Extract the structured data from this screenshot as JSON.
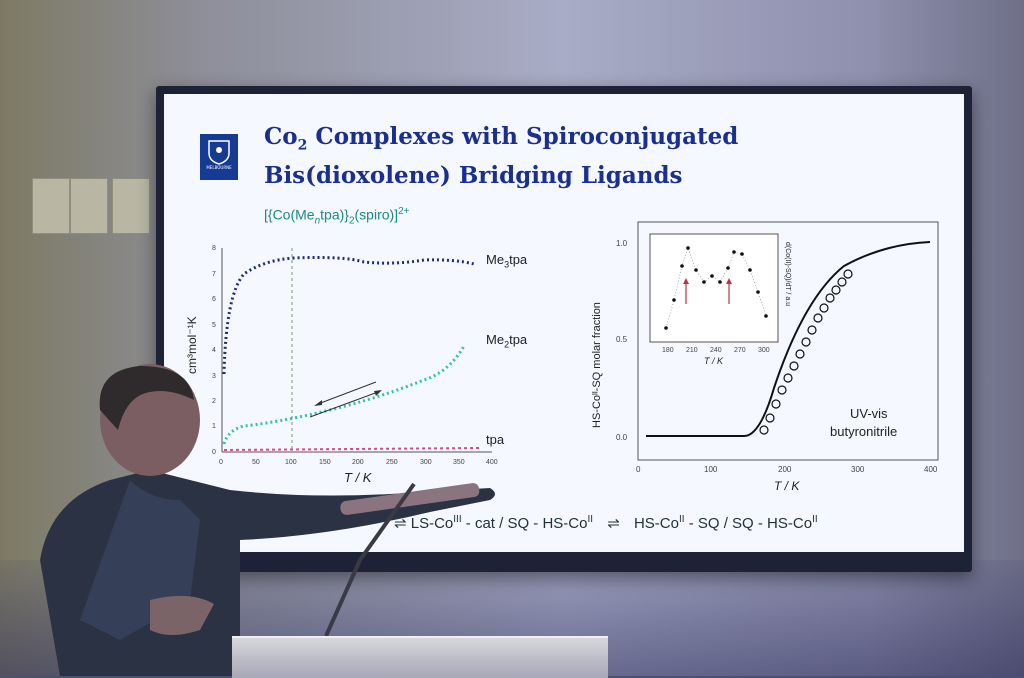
{
  "slide": {
    "title_line1_a": "Co",
    "title_line1_sub": "2",
    "title_line1_b": " Complexes with Spiroconjugated",
    "title_line2": "Bis(dioxolene) Bridging Ligands",
    "logo_text": "MELBOURNE"
  },
  "formula": {
    "part1": "[{Co(Me",
    "n": "n",
    "part2": "tpa)}",
    "sub2": "2",
    "part3": "(spiro)]",
    "charge": "2+"
  },
  "left_plot": {
    "ylabel": "cm³mol⁻¹K",
    "xlabel": "T / K",
    "yticks": [
      "0",
      "1",
      "2",
      "3",
      "4",
      "5",
      "6",
      "7",
      "8"
    ],
    "xticks": [
      "0",
      "50",
      "100",
      "150",
      "200",
      "250",
      "300",
      "350",
      "400"
    ],
    "series": [
      {
        "name_a": "Me",
        "name_sub": "3",
        "name_b": "tpa",
        "color": "#1f2a7a"
      },
      {
        "name_a": "Me",
        "name_sub": "2",
        "name_b": "tpa",
        "color": "#2fc4a8"
      },
      {
        "name_a": "tpa",
        "name_sub": "",
        "name_b": "",
        "color": "#d94a86"
      }
    ]
  },
  "right_plot": {
    "ylabel": "HS-Coᴵᴵ-SQ molar fraction",
    "xlabel": "T / K",
    "yticks": [
      "0.0",
      "0.5",
      "1.0"
    ],
    "xticks": [
      "0",
      "100",
      "200",
      "300",
      "400"
    ],
    "annotation_line1": "UV-vis",
    "annotation_line2": "butyronitrile",
    "inset": {
      "ylabel": "d(Co(II)-SQ)/dT / a.u",
      "xlabel": "T / K",
      "xticks": [
        "180",
        "210",
        "240",
        "270",
        "300"
      ]
    }
  },
  "equation": {
    "a": "LS-Co",
    "a_sup": "III",
    "b": " - cat / SQ - HS-Co",
    "b_sup": "II",
    "c": "HS-Co",
    "c_sup": "II",
    "d": " - SQ / SQ - HS-Co",
    "d_sup": "II"
  }
}
